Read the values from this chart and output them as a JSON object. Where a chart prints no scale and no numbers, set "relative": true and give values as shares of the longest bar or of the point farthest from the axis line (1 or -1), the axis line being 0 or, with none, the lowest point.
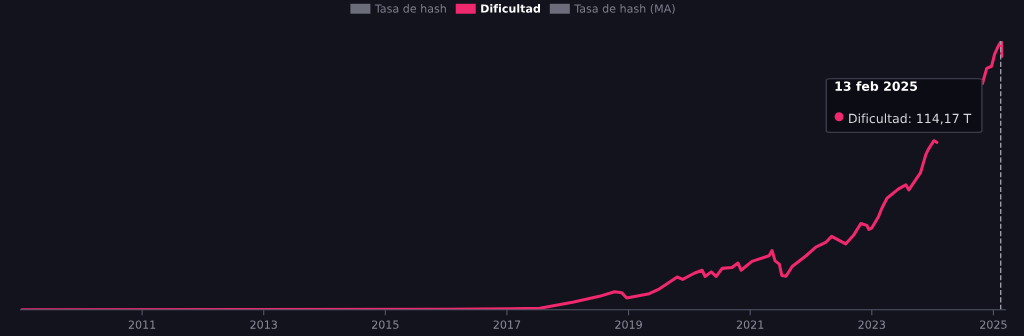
{
  "chart_data": {
    "type": "line",
    "relative": true,
    "legend": "top",
    "grid": false,
    "marker": "none",
    "line_style": "solid",
    "tick_labels": "x",
    "xlim": [
      2009.0,
      2025.2
    ],
    "xticks": [
      2011,
      2013,
      2015,
      2017,
      2019,
      2021,
      2023,
      2025
    ],
    "ref_lines": [
      {
        "axis": "x",
        "value": 2025.12,
        "label": null,
        "color": "#9a9ca8",
        "line_style": "dashed"
      }
    ],
    "annotations": [
      "13 feb 2025",
      "Dificultad: 114,17 T"
    ],
    "series": [
      {
        "name": "Tasa de hash",
        "color": "#6b6e7a"
      },
      {
        "name": "Dificultad",
        "color": "#f0286e",
        "x": [
          2009.02,
          2016.0,
          2017.0,
          2017.54,
          2018.08,
          2018.52,
          2018.77,
          2018.89,
          2018.97,
          2019.34,
          2019.51,
          2019.8,
          2019.89,
          2020.08,
          2020.21,
          2020.26,
          2020.36,
          2020.44,
          2020.54,
          2020.7,
          2020.8,
          2020.85,
          2021.03,
          2021.31,
          2021.36,
          2021.41,
          2021.48,
          2021.52,
          2021.59,
          2021.69,
          2021.92,
          2022.08,
          2022.25,
          2022.34,
          2022.57,
          2022.7,
          2022.82,
          2022.92,
          2022.95,
          2023.0,
          2023.11,
          2023.16,
          2023.25,
          2023.44,
          2023.56,
          2023.61,
          2023.74,
          2023.8,
          2023.89,
          2023.93,
          2024.02,
          2024.07,
          2024.4,
          2024.82,
          2024.89,
          2024.97,
          2025.02,
          2025.08,
          2025.13,
          2025.14
        ],
        "values": [
          0,
          0.002,
          0.004,
          0.006,
          0.028,
          0.05,
          0.067,
          0.063,
          0.044,
          0.06,
          0.078,
          0.122,
          0.113,
          0.136,
          0.147,
          0.124,
          0.141,
          0.124,
          0.154,
          0.157,
          0.174,
          0.147,
          0.18,
          0.201,
          0.22,
          0.182,
          0.17,
          0.128,
          0.125,
          0.161,
          0.201,
          0.233,
          0.252,
          0.273,
          0.245,
          0.277,
          0.321,
          0.314,
          0.299,
          0.304,
          0.346,
          0.375,
          0.415,
          0.45,
          0.465,
          0.446,
          0.49,
          0.509,
          0.578,
          0.597,
          0.629,
          0.623,
          null,
          0.842,
          0.898,
          0.906,
          0.951,
          0.981,
          1.0,
          0.943
        ]
      },
      {
        "name": "Tasa de hash (MA)",
        "color": "#6b6e7a"
      }
    ]
  }
}
